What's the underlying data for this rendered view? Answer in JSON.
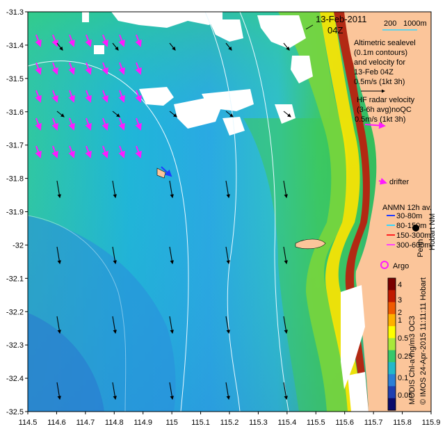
{
  "header": {
    "date": "13-Feb-2011",
    "time": "04Z",
    "scale_200": "200",
    "scale_1000": "1000m"
  },
  "legend": {
    "altimetric_lines": [
      "Altimetric sealevel",
      "(0.1m contours)",
      "and velocity for",
      "13-Feb 04Z",
      "0.5m/s (1kt 3h)"
    ],
    "hf_lines": [
      "HF radar velocity",
      "(3-6h avg)noQC",
      "0.5m/s (1kt 3h)"
    ],
    "drifter": "drifter",
    "anmn_title": "ANMN 12h av.",
    "anmn_items": [
      {
        "label": "30-80m",
        "color": "#1f3cff"
      },
      {
        "label": "80-150m",
        "color": "#35d6ff"
      },
      {
        "label": "150-300m",
        "color": "#ff2020"
      },
      {
        "label": "300-600m",
        "color": "#ff40ff"
      }
    ],
    "argo": "Argo"
  },
  "places": {
    "perth": "Perth",
    "hobart_vertical": "Hobart NM"
  },
  "colorbar": {
    "labels": [
      "4",
      "3",
      "2",
      "1",
      "0.5",
      "0.25",
      "0.1",
      "0.05"
    ],
    "colors": [
      "#7a0000",
      "#c01a00",
      "#f05a00",
      "#ffb000",
      "#ffff00",
      "#a9e83a",
      "#37c86b",
      "#23b8c9",
      "#2b7fd6",
      "#1f3fb0",
      "#0a0a6a"
    ]
  },
  "side_caption": "MODIS Chl-a mg/m3 OC3",
  "side_credit": "© IMOS 24-Apr-2015 11:11:11 Hobart",
  "axes": {
    "x_ticks": [
      "114.5",
      "114.6",
      "114.7",
      "114.8",
      "114.9",
      "115",
      "115.1",
      "115.2",
      "115.3",
      "115.4",
      "115.5",
      "115.6",
      "115.7",
      "115.8",
      "115.9"
    ],
    "y_ticks": [
      "-31.3",
      "-31.4",
      "-31.5",
      "-31.6",
      "-31.7",
      "-31.8",
      "-31.9",
      "-32",
      "-32.1",
      "-32.2",
      "-32.3",
      "-32.4",
      "-32.5"
    ]
  },
  "colors": {
    "land": "#fbc59a",
    "ocean_base": "#2fa3e0",
    "ocean_shelf": "#37c86b",
    "coast_green": "#7cd63a",
    "coast_yellow": "#ffe400",
    "coast_red": "#c0180a",
    "hf_arrow": "#ff1aff",
    "alt_arrow": "#000000",
    "contour": "#e8f8ff"
  }
}
